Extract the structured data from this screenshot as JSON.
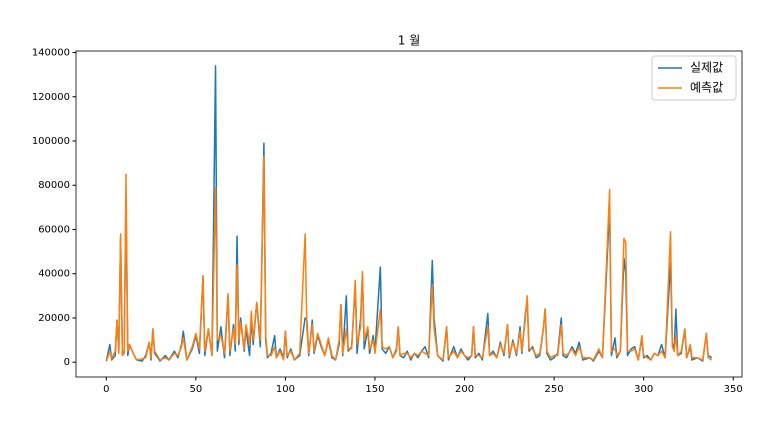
{
  "chart_data": {
    "type": "line",
    "title": "1 월",
    "x": [
      0,
      2,
      3,
      5,
      6,
      7,
      8,
      9,
      10,
      11,
      12,
      13,
      15,
      17,
      20,
      22,
      24,
      25,
      26,
      27,
      30,
      33,
      35,
      38,
      40,
      42,
      43,
      45,
      48,
      50,
      52,
      54,
      55,
      57,
      59,
      61,
      62,
      64,
      66,
      68,
      69,
      71,
      72,
      73,
      74,
      75,
      77,
      78,
      80,
      81,
      82,
      84,
      86,
      88,
      89,
      90,
      92,
      94,
      95,
      97,
      99,
      100,
      101,
      103,
      105,
      108,
      111,
      112,
      113,
      115,
      116,
      118,
      120,
      122,
      124,
      126,
      128,
      130,
      131,
      132,
      134,
      135,
      137,
      139,
      140,
      142,
      143,
      144,
      146,
      147,
      149,
      150,
      153,
      154,
      156,
      158,
      160,
      162,
      163,
      164,
      166,
      168,
      170,
      172,
      174,
      176,
      178,
      180,
      182,
      183,
      185,
      188,
      190,
      191,
      194,
      196,
      198,
      200,
      202,
      204,
      205,
      206,
      208,
      210,
      213,
      214,
      216,
      218,
      220,
      222,
      224,
      225,
      227,
      229,
      231,
      232,
      234,
      235,
      236,
      238,
      240,
      242,
      244,
      245,
      246,
      248,
      250,
      252,
      254,
      255,
      257,
      260,
      262,
      264,
      266,
      270,
      272,
      275,
      277,
      281,
      282,
      284,
      285,
      287,
      289,
      290,
      291,
      293,
      295,
      297,
      299,
      300,
      302,
      304,
      306,
      308,
      310,
      312,
      315,
      316,
      317,
      318,
      319,
      321,
      323,
      324,
      326,
      327,
      330,
      333,
      335,
      336,
      338
    ],
    "series": [
      {
        "name": "실제값",
        "color": "#1f77b4",
        "values": [
          500,
          8000,
          1000,
          3000,
          19000,
          5000,
          57000,
          4000,
          5000,
          75000,
          3000,
          8000,
          4000,
          1000,
          500,
          3000,
          9000,
          1000,
          15000,
          4000,
          500,
          3000,
          1000,
          5000,
          2000,
          8000,
          14000,
          1000,
          6000,
          12000,
          4000,
          39000,
          3000,
          15000,
          3000,
          134000,
          5000,
          16000,
          2000,
          30000,
          3000,
          17000,
          5000,
          57000,
          8000,
          20000,
          5000,
          15000,
          3000,
          20000,
          8000,
          27000,
          7000,
          99000,
          10000,
          2000,
          4000,
          12000,
          2000,
          6000,
          2000,
          14000,
          2000,
          6000,
          1000,
          3000,
          20000,
          19000,
          3000,
          19000,
          4000,
          12000,
          7000,
          3000,
          10000,
          2000,
          1000,
          8000,
          26000,
          3000,
          30000,
          5000,
          7000,
          35000,
          4000,
          20000,
          40000,
          6000,
          15000,
          4000,
          12000,
          5000,
          43000,
          6000,
          4000,
          7000,
          2000,
          6000,
          16000,
          3000,
          2000,
          5000,
          1000,
          4000,
          2000,
          5000,
          7000,
          2000,
          46000,
          20000,
          3000,
          500,
          16000,
          1000,
          7000,
          2000,
          6000,
          3000,
          1000,
          3000,
          16000,
          2000,
          4000,
          1000,
          22000,
          3000,
          5000,
          2000,
          9000,
          3000,
          17000,
          2000,
          10000,
          3000,
          16000,
          4000,
          22000,
          28000,
          5000,
          7000,
          2000,
          3000,
          15000,
          24000,
          4000,
          1000,
          2000,
          4000,
          20000,
          3000,
          2000,
          7000,
          4000,
          9000,
          1000,
          2000,
          500,
          5000,
          2000,
          70000,
          3000,
          11000,
          2000,
          5000,
          47000,
          40000,
          3000,
          6000,
          7000,
          1000,
          11000,
          2000,
          3000,
          1000,
          4000,
          3000,
          8000,
          2000,
          45000,
          9000,
          5000,
          24000,
          3000,
          4000,
          15000,
          2000,
          7000,
          1000,
          2000,
          500,
          13000,
          3000,
          2000
        ]
      },
      {
        "name": "예측값",
        "color": "#ff7f0e",
        "values": [
          300,
          5000,
          1500,
          5000,
          19000,
          4000,
          58000,
          3000,
          4000,
          85000,
          5000,
          8000,
          4000,
          1000,
          1500,
          2000,
          9000,
          2000,
          15000,
          5000,
          1000,
          2000,
          1000,
          4000,
          3000,
          7000,
          11000,
          1000,
          7000,
          13000,
          6000,
          39000,
          5000,
          15000,
          3000,
          79000,
          10000,
          12000,
          4000,
          31000,
          5000,
          15000,
          8000,
          44000,
          10000,
          18000,
          6000,
          17000,
          8000,
          23000,
          10000,
          27000,
          10000,
          93000,
          12000,
          3000,
          3000,
          7000,
          2000,
          5000,
          1000,
          14000,
          3000,
          5000,
          1000,
          4000,
          58000,
          15000,
          4000,
          17000,
          5000,
          13000,
          8000,
          3000,
          11000,
          3000,
          1000,
          10000,
          26000,
          4000,
          15000,
          6000,
          6000,
          37000,
          8000,
          16000,
          41000,
          10000,
          16000,
          6000,
          10000,
          4000,
          24000,
          7000,
          6000,
          7000,
          2000,
          5000,
          16000,
          3000,
          4000,
          4000,
          2000,
          4000,
          3000,
          5000,
          4000,
          3000,
          35000,
          15000,
          3000,
          1000,
          16000,
          2000,
          5000,
          2000,
          5000,
          3000,
          2000,
          3000,
          16000,
          3000,
          3000,
          2000,
          16000,
          3000,
          4000,
          2000,
          8000,
          4000,
          17000,
          3000,
          9000,
          4000,
          14000,
          5000,
          20000,
          30000,
          6000,
          6000,
          3000,
          4000,
          15000,
          24000,
          5000,
          2000,
          3000,
          3000,
          17000,
          4000,
          3000,
          6000,
          3000,
          7000,
          2000,
          2000,
          1000,
          6000,
          2000,
          78000,
          5000,
          6000,
          3000,
          5000,
          56000,
          54000,
          5000,
          5000,
          6000,
          1000,
          12000,
          3000,
          2000,
          1000,
          4000,
          3000,
          5000,
          2000,
          59000,
          7000,
          5000,
          12000,
          3000,
          5000,
          15000,
          2000,
          8000,
          2000,
          2000,
          1000,
          13000,
          2000,
          1000
        ]
      }
    ],
    "xlim": [
      -16.9,
      354.9
    ],
    "ylim": [
      -6700,
      140700
    ],
    "xticks": [
      0,
      50,
      100,
      150,
      200,
      250,
      300,
      350
    ],
    "yticks": [
      0,
      20000,
      40000,
      60000,
      80000,
      100000,
      120000,
      140000
    ],
    "legend": "upper right"
  }
}
